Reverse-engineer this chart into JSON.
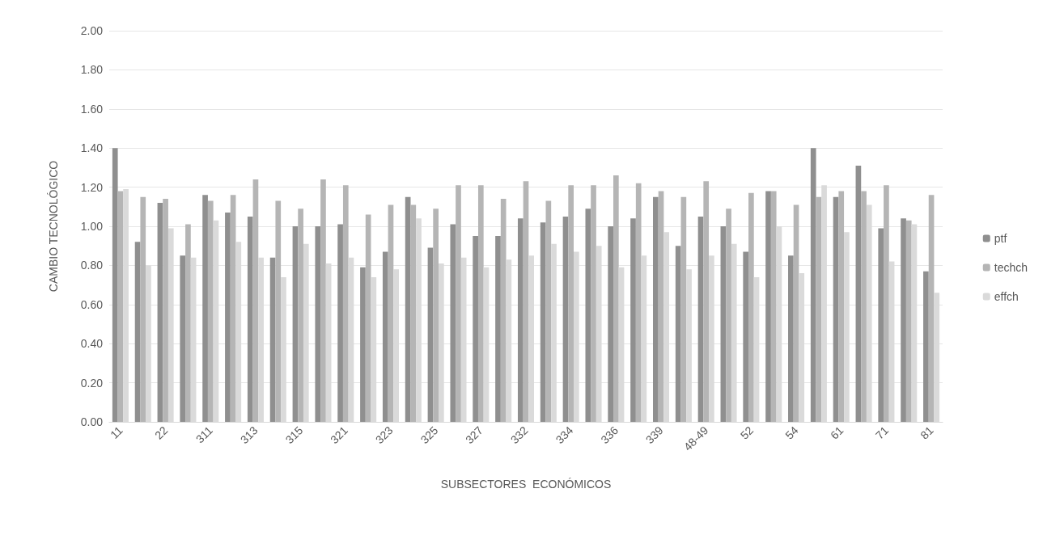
{
  "chart_data": {
    "type": "bar",
    "xlabel": "SUBSECTORES  ECONÓMICOS",
    "ylabel": "CAMBIO TECNOLÓGICO",
    "categories": [
      "11",
      null,
      "22",
      null,
      "311",
      null,
      "313",
      null,
      "315",
      null,
      "321",
      null,
      "323",
      null,
      "325",
      null,
      "327",
      null,
      "332",
      null,
      "334",
      null,
      "336",
      null,
      "339",
      null,
      "48-49",
      null,
      "52",
      null,
      "54",
      null,
      "61",
      null,
      "71",
      null,
      "81"
    ],
    "series": [
      {
        "name": "ptf",
        "color": "#8f8f8f",
        "values": [
          1.4,
          0.92,
          1.12,
          0.85,
          1.16,
          1.07,
          1.05,
          0.84,
          1.0,
          1.0,
          1.01,
          0.79,
          0.87,
          1.15,
          0.89,
          1.01,
          0.95,
          0.95,
          1.04,
          1.02,
          1.05,
          1.09,
          1.0,
          1.04,
          1.15,
          0.9,
          1.05,
          1.0,
          0.87,
          1.18,
          0.85,
          1.4,
          1.15,
          1.31,
          0.99,
          1.04,
          0.77
        ]
      },
      {
        "name": "techch",
        "color": "#b5b5b5",
        "values": [
          1.18,
          1.15,
          1.14,
          1.01,
          1.13,
          1.16,
          1.24,
          1.13,
          1.09,
          1.24,
          1.21,
          1.06,
          1.11,
          1.11,
          1.09,
          1.21,
          1.21,
          1.14,
          1.23,
          1.13,
          1.21,
          1.21,
          1.26,
          1.22,
          1.18,
          1.15,
          1.23,
          1.09,
          1.17,
          1.18,
          1.11,
          1.15,
          1.18,
          1.18,
          1.21,
          1.03,
          1.16
        ]
      },
      {
        "name": "effch",
        "color": "#dadada",
        "values": [
          1.19,
          0.8,
          0.99,
          0.84,
          1.03,
          0.92,
          0.84,
          0.74,
          0.91,
          0.81,
          0.84,
          0.74,
          0.78,
          1.04,
          0.81,
          0.84,
          0.79,
          0.83,
          0.85,
          0.91,
          0.87,
          0.9,
          0.79,
          0.85,
          0.97,
          0.78,
          0.85,
          0.91,
          0.74,
          1.0,
          0.76,
          1.21,
          0.97,
          1.11,
          0.82,
          1.01,
          0.66
        ]
      }
    ],
    "ylim": [
      0,
      2
    ],
    "yticks": [
      {
        "value": 0,
        "label": "0.00"
      },
      {
        "value": 0.2,
        "label": "0.20"
      },
      {
        "value": 0.4,
        "label": "0.40"
      },
      {
        "value": 0.6,
        "label": "0.60"
      },
      {
        "value": 0.8,
        "label": "0.80"
      },
      {
        "value": 1,
        "label": "1.00"
      },
      {
        "value": 1.2,
        "label": "1.20"
      },
      {
        "value": 1.4,
        "label": "1.40"
      },
      {
        "value": 1.6,
        "label": "1.60"
      },
      {
        "value": 1.8,
        "label": "1.80"
      },
      {
        "value": 2,
        "label": "2.00"
      }
    ],
    "grid": "y",
    "legend": "right"
  }
}
